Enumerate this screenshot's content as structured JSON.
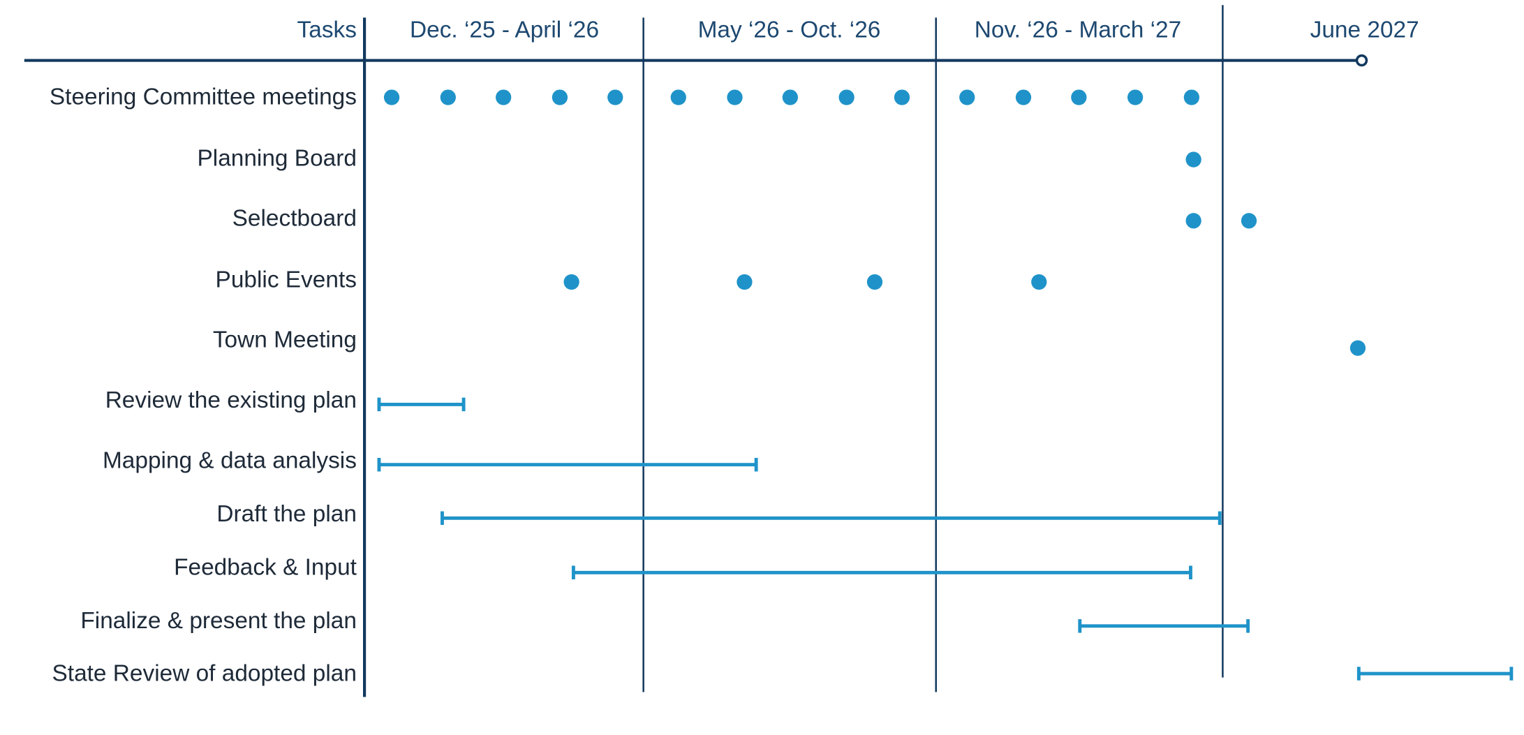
{
  "header": {
    "tasks": "Tasks",
    "periods": [
      "Dec. ‘25 - April ‘26",
      "May ‘26 - Oct. ‘26",
      "Nov. ‘26 - March ‘27",
      "June 2027"
    ]
  },
  "rows": [
    {
      "label": "Steering Committee meetings"
    },
    {
      "label": "Planning Board"
    },
    {
      "label": "Selectboard"
    },
    {
      "label": "Public Events"
    },
    {
      "label": "Town Meeting"
    },
    {
      "label": "Review the existing plan"
    },
    {
      "label": "Mapping & data analysis"
    },
    {
      "label": "Draft the plan"
    },
    {
      "label": "Feedback & Input"
    },
    {
      "label": "Finalize & present the plan"
    },
    {
      "label": "State Review of adopted plan"
    }
  ]
}
